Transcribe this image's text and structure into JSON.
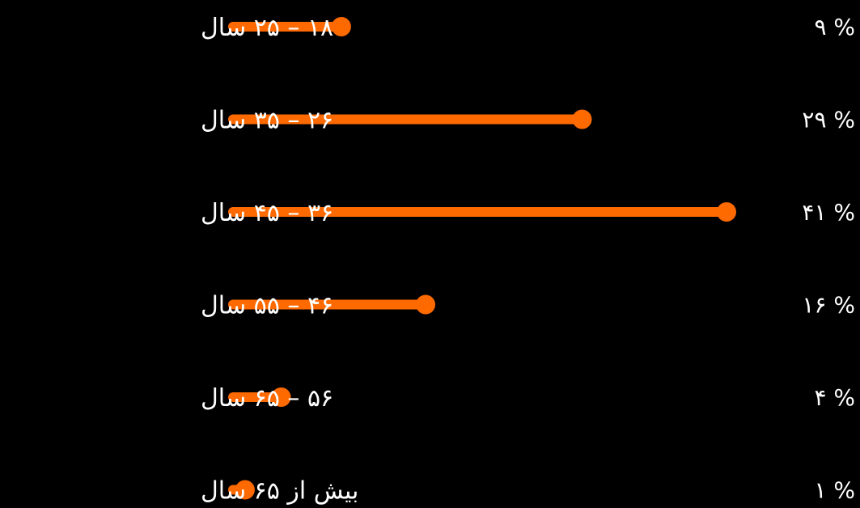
{
  "chart_data": {
    "type": "bar",
    "orientation": "horizontal",
    "style": "lollipop",
    "direction": "rtl",
    "bar_color": "#ff6a00",
    "background": "#000000",
    "categories": [
      "۱۸ – ۲۵ سال",
      "۲۶ – ۳۵ سال",
      "۳۶ – ۴۵ سال",
      "۴۶ – ۵۵ سال",
      "۵۶ – ۶۵ سال",
      "بیش از ۶۵ سال"
    ],
    "values": [
      9,
      29,
      41,
      16,
      4,
      1
    ],
    "value_labels": [
      "۹ %",
      "۲۹ %",
      "۴۱ %",
      "۱۶ %",
      "۴ %",
      "۱ %"
    ],
    "title": "",
    "xlabel": "",
    "ylabel": "",
    "xlim": [
      0,
      41
    ],
    "grid": false,
    "legend": "none"
  }
}
